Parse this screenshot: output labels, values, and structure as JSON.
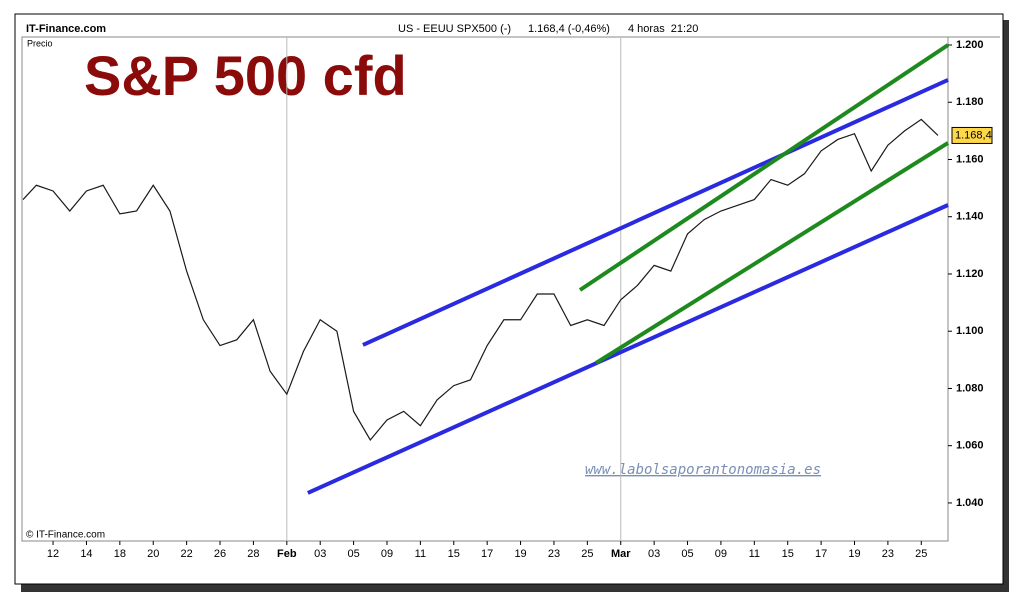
{
  "chart_data": {
    "type": "line",
    "header": {
      "site": "IT-Finance.com",
      "instrument": "US - EEUU SPX500 (-)",
      "quote": "1.168,4 (-0,46%)",
      "period": "4 horas  21:20"
    },
    "ylabel": "Precio",
    "title": "S&P 500 cfd",
    "copyright": "© IT-Finance.com",
    "watermark": "www.labolsaporantonomasia.es",
    "color": "#1a1a1a",
    "x": [
      -0.9,
      -0.5,
      0,
      0.5,
      1,
      1.5,
      2,
      2.5,
      3,
      3.5,
      4,
      4.5,
      5,
      5.5,
      6,
      6.5,
      7,
      7.5,
      8,
      8.5,
      9,
      9.5,
      10,
      10.5,
      11,
      11.5,
      12,
      12.5,
      13,
      13.5,
      14,
      14.5,
      15,
      15.5,
      16,
      16.5,
      17,
      17.5,
      18,
      18.5,
      19,
      19.5,
      20,
      20.5,
      21,
      21.5,
      22,
      22.5,
      23,
      23.5,
      24,
      24.5,
      25,
      25.5,
      26,
      26.5
    ],
    "values": [
      1.146,
      1.151,
      1.149,
      1.142,
      1.149,
      1.151,
      1.141,
      1.142,
      1.151,
      1.142,
      1.121,
      1.104,
      1.095,
      1.097,
      1.104,
      1.086,
      1.078,
      1.093,
      1.104,
      1.1,
      1.072,
      1.062,
      1.069,
      1.072,
      1.067,
      1.076,
      1.081,
      1.083,
      1.095,
      1.104,
      1.104,
      1.113,
      1.113,
      1.102,
      1.104,
      1.102,
      1.111,
      1.116,
      1.123,
      1.121,
      1.134,
      1.139,
      1.142,
      1.144,
      1.146,
      1.153,
      1.151,
      1.155,
      1.163,
      1.167,
      1.169,
      1.156,
      1.165,
      1.17,
      1.174,
      1.1684
    ],
    "last_value": 1.1684,
    "last_value_label": "1.168,4",
    "trendlines": [
      {
        "color": "#2a2ae0",
        "x": [
          9.28,
          26.8
        ],
        "values": [
          1.0952,
          1.1878
        ]
      },
      {
        "color": "#2a2ae0",
        "x": [
          7.63,
          26.8
        ],
        "values": [
          1.0435,
          1.1441
        ]
      },
      {
        "color": "#1e8a1e",
        "x": [
          15.78,
          26.8
        ],
        "values": [
          1.1144,
          1.2
        ]
      },
      {
        "color": "#1e8a1e",
        "x": [
          16.26,
          26.8
        ],
        "values": [
          1.0889,
          1.1658
        ]
      }
    ],
    "xlim": [
      -0.93,
      26.8
    ],
    "ylim": [
      1.0267,
      1.2028
    ],
    "xticks": [
      {
        "value": 0,
        "label": "12"
      },
      {
        "value": 1,
        "label": "14"
      },
      {
        "value": 2,
        "label": "18"
      },
      {
        "value": 3,
        "label": "20"
      },
      {
        "value": 4,
        "label": "22"
      },
      {
        "value": 5,
        "label": "26"
      },
      {
        "value": 6,
        "label": "28"
      },
      {
        "value": 7,
        "label": "Feb"
      },
      {
        "value": 8,
        "label": "03"
      },
      {
        "value": 9,
        "label": "05"
      },
      {
        "value": 10,
        "label": "09"
      },
      {
        "value": 11,
        "label": "11"
      },
      {
        "value": 12,
        "label": "15"
      },
      {
        "value": 13,
        "label": "17"
      },
      {
        "value": 14,
        "label": "19"
      },
      {
        "value": 15,
        "label": "23"
      },
      {
        "value": 16,
        "label": "25"
      },
      {
        "value": 17,
        "label": "Mar"
      },
      {
        "value": 18,
        "label": "03"
      },
      {
        "value": 19,
        "label": "05"
      },
      {
        "value": 20,
        "label": "09"
      },
      {
        "value": 21,
        "label": "11"
      },
      {
        "value": 22,
        "label": "15"
      },
      {
        "value": 23,
        "label": "17"
      },
      {
        "value": 24,
        "label": "19"
      },
      {
        "value": 25,
        "label": "23"
      },
      {
        "value": 26,
        "label": "25"
      }
    ],
    "yticks": [
      {
        "value": 1.04,
        "label": "1.040"
      },
      {
        "value": 1.06,
        "label": "1.060"
      },
      {
        "value": 1.08,
        "label": "1.080"
      },
      {
        "value": 1.1,
        "label": "1.100"
      },
      {
        "value": 1.12,
        "label": "1.120"
      },
      {
        "value": 1.14,
        "label": "1.140"
      },
      {
        "value": 1.16,
        "label": "1.160"
      },
      {
        "value": 1.18,
        "label": "1.180"
      },
      {
        "value": 1.2,
        "label": "1.200"
      }
    ],
    "grid": true
  }
}
